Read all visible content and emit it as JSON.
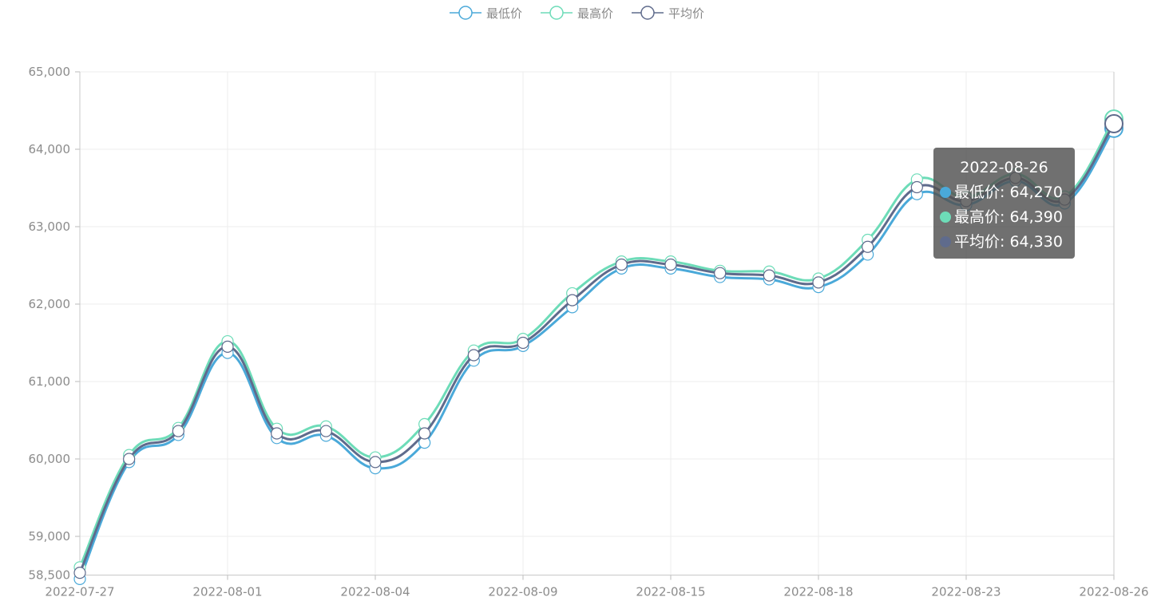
{
  "chart_data": {
    "type": "line",
    "smooth": true,
    "x": [
      "2022-07-27",
      "2022-07-29",
      "2022-07-30",
      "2022-08-01",
      "2022-08-02",
      "2022-08-03",
      "2022-08-04",
      "2022-08-05",
      "2022-08-08",
      "2022-08-09",
      "2022-08-10",
      "2022-08-12",
      "2022-08-15",
      "2022-08-16",
      "2022-08-17",
      "2022-08-18",
      "2022-08-19",
      "2022-08-22",
      "2022-08-23",
      "2022-08-24",
      "2022-08-25",
      "2022-08-26"
    ],
    "x_tick_labels": [
      "2022-07-27",
      "2022-08-01",
      "2022-08-04",
      "2022-08-09",
      "2022-08-15",
      "2022-08-18",
      "2022-08-23",
      "2022-08-26"
    ],
    "y_tick_labels": [
      "58,500",
      "59,000",
      "60,000",
      "61,000",
      "62,000",
      "63,000",
      "64,000",
      "65,000"
    ],
    "ylim": [
      58500,
      65000
    ],
    "grid": true,
    "legend_position": "top-center",
    "series": [
      {
        "name": "最低价",
        "color": "#4aa9d9",
        "values": [
          58450,
          59960,
          60310,
          61370,
          60270,
          60300,
          59880,
          60210,
          61270,
          61460,
          61960,
          62460,
          62460,
          62350,
          62320,
          62220,
          62640,
          63420,
          63280,
          63590,
          63300,
          64270
        ]
      },
      {
        "name": "最高价",
        "color": "#6ddcb8",
        "values": [
          58600,
          60050,
          60400,
          61520,
          60390,
          60420,
          60020,
          60450,
          61400,
          61550,
          62140,
          62550,
          62550,
          62430,
          62420,
          62330,
          62830,
          63610,
          63380,
          63680,
          63390,
          64390
        ]
      },
      {
        "name": "平均价",
        "color": "#5f6b8c",
        "values": [
          58530,
          60000,
          60360,
          61450,
          60330,
          60360,
          59960,
          60330,
          61340,
          61500,
          62050,
          62510,
          62510,
          62400,
          62370,
          62280,
          62740,
          63510,
          63330,
          63630,
          63350,
          64330
        ]
      }
    ],
    "tooltip": {
      "title": "2022-08-26",
      "rows": [
        {
          "name": "最低价",
          "value": "64,270",
          "color": "#4aa9d9"
        },
        {
          "name": "最高价",
          "value": "64,390",
          "color": "#6ddcb8"
        },
        {
          "name": "平均价",
          "value": "64,330",
          "color": "#5f6b8c"
        }
      ]
    }
  }
}
